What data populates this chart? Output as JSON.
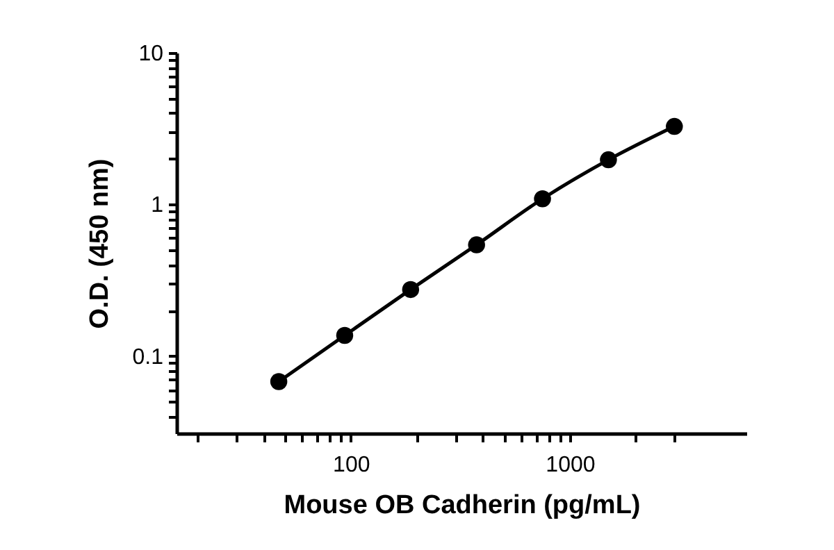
{
  "chart_data": {
    "type": "line",
    "xlabel": "Mouse OB Cadherin (pg/mL)",
    "ylabel": "O.D. (450 nm)",
    "x": [
      46.88,
      93.75,
      187.5,
      375,
      750,
      1500,
      3000
    ],
    "series": [
      {
        "color": "#000000",
        "values": [
          0.068,
          0.137,
          0.275,
          0.542,
          1.09,
          1.97,
          3.27
        ]
      }
    ],
    "log": "xy",
    "marker": "circle",
    "line_style": "solid",
    "grid": false,
    "xlim": [
      16,
      6400
    ],
    "ylim": [
      0.031,
      10
    ],
    "xticks": [
      {
        "value": 20,
        "label": null
      },
      {
        "value": 30,
        "label": null
      },
      {
        "value": 40,
        "label": null
      },
      {
        "value": 50,
        "label": null
      },
      {
        "value": 60,
        "label": null
      },
      {
        "value": 70,
        "label": null
      },
      {
        "value": 80,
        "label": null
      },
      {
        "value": 90,
        "label": null
      },
      100,
      {
        "value": 200,
        "label": null
      },
      {
        "value": 300,
        "label": null
      },
      {
        "value": 400,
        "label": null
      },
      {
        "value": 500,
        "label": null
      },
      {
        "value": 600,
        "label": null
      },
      {
        "value": 700,
        "label": null
      },
      {
        "value": 800,
        "label": null
      },
      {
        "value": 900,
        "label": null
      },
      1000,
      {
        "value": 2000,
        "label": null
      },
      {
        "value": 3000,
        "label": null
      }
    ],
    "yticks": [
      {
        "value": 0.04,
        "label": null
      },
      {
        "value": 0.05,
        "label": null
      },
      {
        "value": 0.06,
        "label": null
      },
      {
        "value": 0.07,
        "label": null
      },
      {
        "value": 0.08,
        "label": null
      },
      {
        "value": 0.09,
        "label": null
      },
      0.1,
      {
        "value": 0.2,
        "label": null
      },
      {
        "value": 0.3,
        "label": null
      },
      {
        "value": 0.4,
        "label": null
      },
      {
        "value": 0.5,
        "label": null
      },
      {
        "value": 0.6,
        "label": null
      },
      {
        "value": 0.7,
        "label": null
      },
      {
        "value": 0.8,
        "label": null
      },
      {
        "value": 0.9,
        "label": null
      },
      1,
      {
        "value": 2,
        "label": null
      },
      {
        "value": 3,
        "label": null
      },
      {
        "value": 4,
        "label": null
      },
      {
        "value": 5,
        "label": null
      },
      {
        "value": 6,
        "label": null
      },
      {
        "value": 7,
        "label": null
      },
      {
        "value": 8,
        "label": null
      },
      {
        "value": 9,
        "label": null
      },
      10
    ]
  }
}
